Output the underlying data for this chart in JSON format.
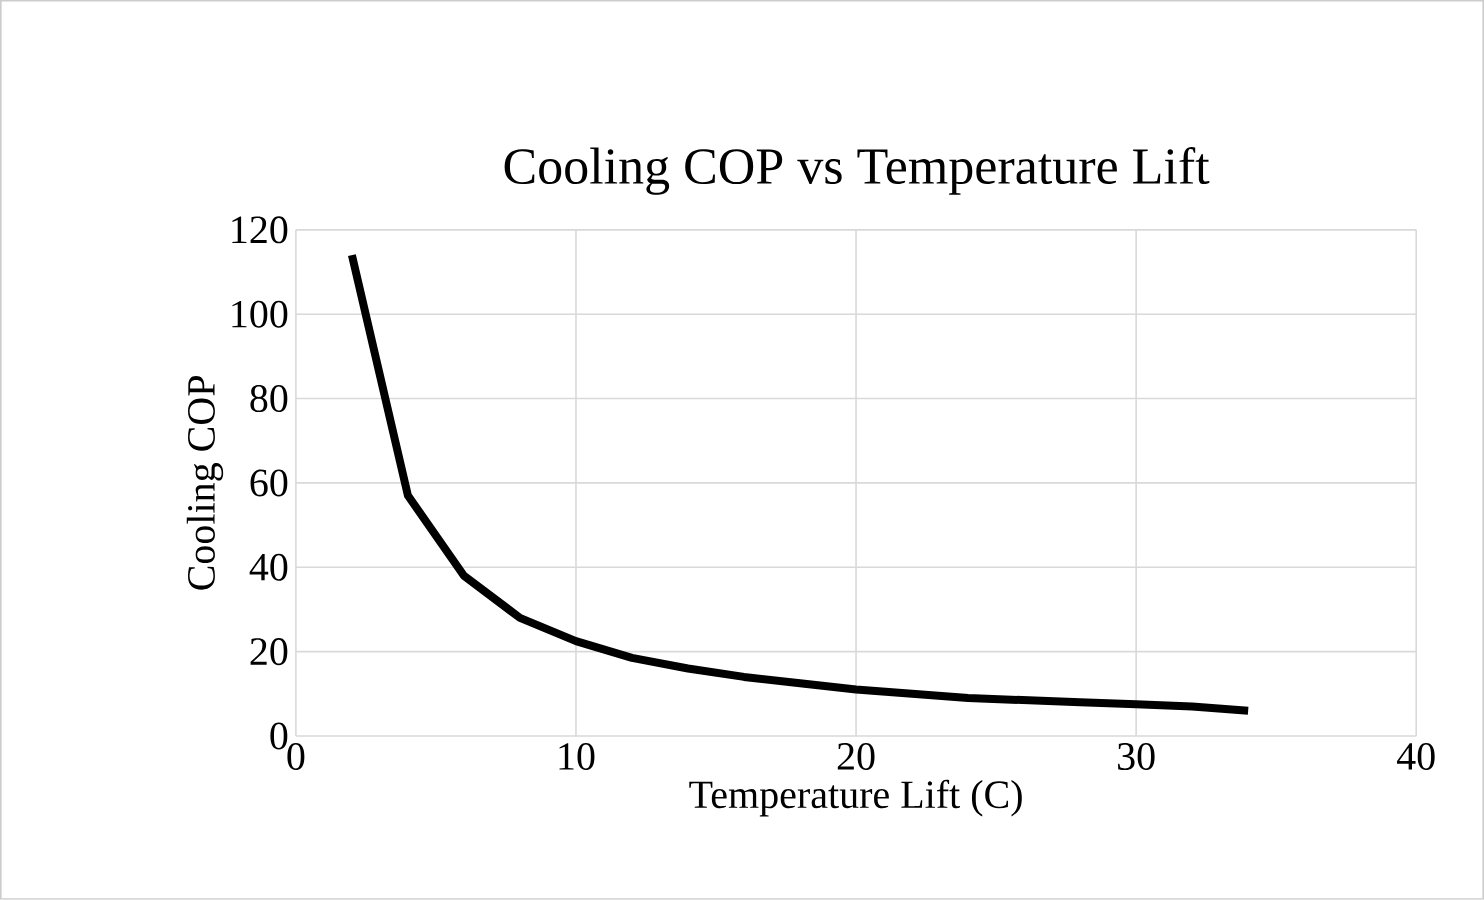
{
  "chart_data": {
    "type": "line",
    "title": "Cooling COP vs Temperature Lift",
    "xlabel": "Temperature Lift (C)",
    "ylabel": "Cooling COP",
    "x": [
      2,
      4,
      6,
      8,
      10,
      12,
      14,
      16,
      18,
      20,
      22,
      24,
      26,
      28,
      30,
      32,
      34
    ],
    "series": [
      {
        "color": "#000000",
        "values": [
          114,
          57,
          38,
          28,
          22.5,
          18.5,
          16,
          14,
          12.5,
          11,
          10,
          9,
          8.5,
          8,
          7.5,
          7,
          6
        ]
      }
    ],
    "xlim": [
      0,
      40
    ],
    "xticks": [
      0,
      10,
      20,
      30,
      40
    ],
    "ylim": [
      0,
      120
    ],
    "yticks": [
      0,
      20,
      40,
      60,
      80,
      100,
      120
    ],
    "grid": true,
    "marker": "none",
    "line_style": "solid"
  }
}
